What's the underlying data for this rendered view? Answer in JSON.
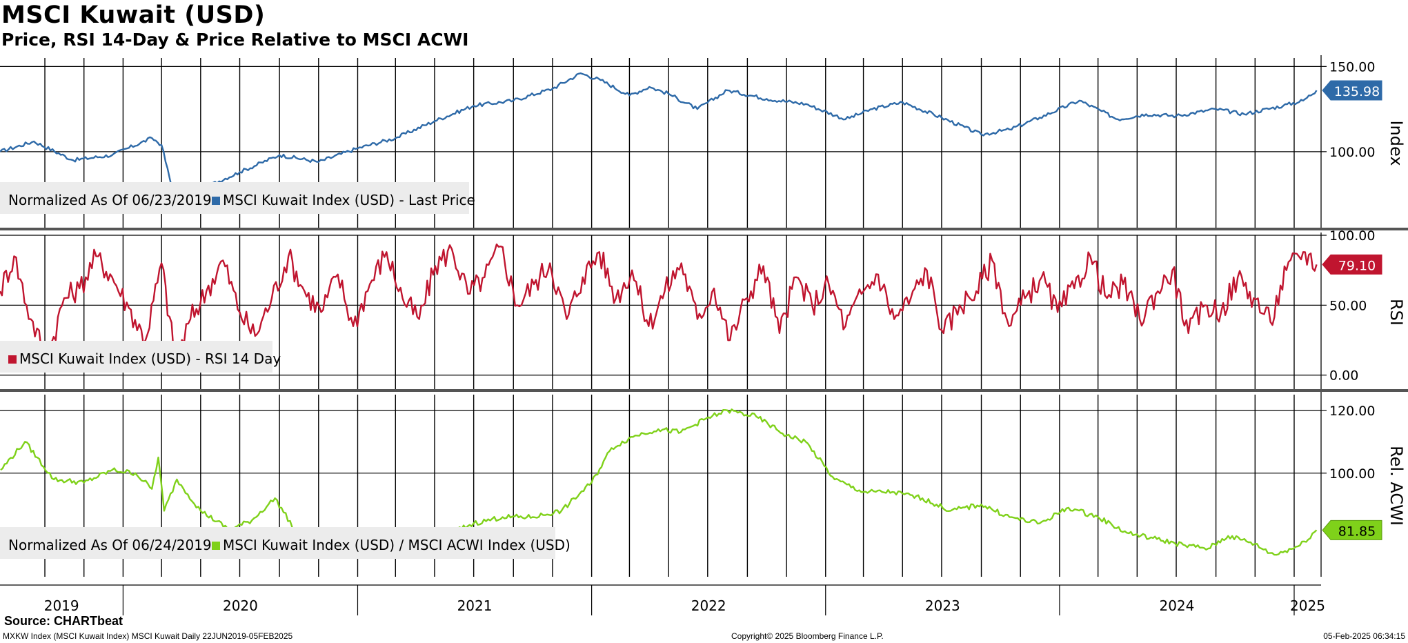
{
  "header": {
    "title": "MSCI Kuwait (USD)",
    "subtitle": "Price, RSI 14-Day & Price Relative to MSCI ACWI"
  },
  "footer": {
    "source": "Source: CHARTbeat",
    "left": "MXKW Index (MSCI Kuwait Index) MSCI Kuwait  Daily 22JUN2019-05FEB2025",
    "center": "Copyright© 2025 Bloomberg Finance L.P.",
    "right": "05-Feb-2025 06:34:15"
  },
  "colors": {
    "price": "#2e6aa8",
    "rsi": "#c0152f",
    "relative": "#7fd11a",
    "grid": "#000000",
    "legend_bg": "#ececec"
  },
  "chart_data": [
    {
      "type": "line",
      "panel": "price",
      "ylabel": "Index",
      "ylim": [
        55,
        155
      ],
      "yticks": [
        "150.00",
        "100.00"
      ],
      "last_value": "135.98",
      "legend_prefix": "Normalized As Of 06/23/2019",
      "series": [
        {
          "name": "MSCI Kuwait Index (USD) - Last Price",
          "x": [
            "2019-06-23",
            "2019-08-15",
            "2019-10-15",
            "2019-12-15",
            "2020-02-15",
            "2020-03-01",
            "2020-03-23",
            "2020-05-01",
            "2020-07-01",
            "2020-09-01",
            "2020-11-01",
            "2021-01-01",
            "2021-03-01",
            "2021-05-01",
            "2021-07-01",
            "2021-09-01",
            "2021-11-01",
            "2021-12-15",
            "2022-01-15",
            "2022-03-01",
            "2022-04-01",
            "2022-05-01",
            "2022-06-15",
            "2022-08-01",
            "2022-10-01",
            "2022-12-01",
            "2023-02-01",
            "2023-03-15",
            "2023-05-01",
            "2023-07-01",
            "2023-09-01",
            "2023-10-15",
            "2023-12-01",
            "2024-02-01",
            "2024-04-01",
            "2024-05-15",
            "2024-07-01",
            "2024-09-01",
            "2024-10-15",
            "2024-12-15",
            "2025-01-15",
            "2025-02-05"
          ],
          "values": [
            100,
            106,
            95,
            98,
            108,
            104,
            70,
            78,
            88,
            98,
            94,
            102,
            108,
            118,
            127,
            130,
            137,
            146,
            142,
            133,
            138,
            134,
            125,
            136,
            131,
            128,
            119,
            125,
            129,
            120,
            110,
            113,
            120,
            130,
            119,
            122,
            121,
            125,
            122,
            127,
            130,
            135.98
          ]
        }
      ]
    },
    {
      "type": "line",
      "panel": "rsi",
      "ylabel": "RSI",
      "ylim": [
        -10,
        100
      ],
      "yticks": [
        "100.00",
        "50.00",
        "0.00"
      ],
      "last_value": "79.10",
      "series": [
        {
          "name": "MSCI Kuwait Index (USD) - RSI 14 Day",
          "x": [
            "2019-06-23",
            "2019-07-15",
            "2019-08-10",
            "2019-09-05",
            "2019-10-01",
            "2019-10-25",
            "2019-11-20",
            "2019-12-15",
            "2020-01-10",
            "2020-02-05",
            "2020-03-01",
            "2020-03-23",
            "2020-04-15",
            "2020-05-10",
            "2020-06-05",
            "2020-07-01",
            "2020-07-25",
            "2020-08-20",
            "2020-09-15",
            "2020-10-10",
            "2020-11-05",
            "2020-12-01",
            "2020-12-25",
            "2021-01-20",
            "2021-02-15",
            "2021-03-12",
            "2021-04-07",
            "2021-05-02",
            "2021-05-28",
            "2021-06-22",
            "2021-07-18",
            "2021-08-12",
            "2021-09-07",
            "2021-10-03",
            "2021-10-28",
            "2021-11-23",
            "2021-12-18",
            "2022-01-13",
            "2022-02-08",
            "2022-03-05",
            "2022-03-31",
            "2022-04-25",
            "2022-05-21",
            "2022-06-15",
            "2022-07-11",
            "2022-08-05",
            "2022-08-31",
            "2022-09-26",
            "2022-10-21",
            "2022-11-16",
            "2022-12-11",
            "2023-01-06",
            "2023-02-01",
            "2023-02-26",
            "2023-03-24",
            "2023-04-18",
            "2023-05-14",
            "2023-06-08",
            "2023-07-04",
            "2023-07-29",
            "2023-08-24",
            "2023-09-18",
            "2023-10-14",
            "2023-11-08",
            "2023-12-04",
            "2023-12-29",
            "2024-01-24",
            "2024-02-18",
            "2024-03-15",
            "2024-04-09",
            "2024-05-05",
            "2024-05-30",
            "2024-06-25",
            "2024-07-20",
            "2024-08-15",
            "2024-09-09",
            "2024-10-05",
            "2024-10-30",
            "2024-11-25",
            "2024-12-20",
            "2025-01-15",
            "2025-02-05"
          ],
          "values": [
            60,
            85,
            40,
            12,
            55,
            62,
            85,
            70,
            48,
            25,
            80,
            10,
            40,
            60,
            82,
            45,
            28,
            55,
            85,
            60,
            45,
            72,
            35,
            65,
            88,
            55,
            40,
            78,
            90,
            58,
            70,
            92,
            50,
            65,
            80,
            40,
            70,
            88,
            55,
            75,
            35,
            60,
            80,
            40,
            62,
            25,
            55,
            78,
            30,
            70,
            50,
            65,
            35,
            58,
            72,
            40,
            55,
            75,
            30,
            50,
            60,
            82,
            35,
            55,
            70,
            45,
            62,
            85,
            55,
            65,
            40,
            58,
            75,
            30,
            50,
            45,
            70,
            55,
            38,
            75,
            88,
            79.1
          ]
        }
      ]
    },
    {
      "type": "line",
      "panel": "relative",
      "ylabel": "Rel. ACWI",
      "ylim": [
        67,
        125
      ],
      "yticks": [
        "120.00",
        "100.00"
      ],
      "last_value": "81.85",
      "legend_prefix": "Normalized As Of 06/24/2019",
      "series": [
        {
          "name": "MSCI Kuwait Index (USD) / MSCI ACWI Index (USD)",
          "x": [
            "2019-06-24",
            "2019-08-01",
            "2019-09-15",
            "2019-11-01",
            "2019-12-15",
            "2020-01-20",
            "2020-02-15",
            "2020-02-25",
            "2020-03-05",
            "2020-03-25",
            "2020-05-01",
            "2020-06-15",
            "2020-07-20",
            "2020-08-25",
            "2020-10-01",
            "2020-11-15",
            "2021-01-01",
            "2021-02-15",
            "2021-04-01",
            "2021-05-15",
            "2021-07-01",
            "2021-08-15",
            "2021-10-01",
            "2021-11-15",
            "2022-01-01",
            "2022-02-01",
            "2022-03-10",
            "2022-04-15",
            "2022-05-20",
            "2022-06-25",
            "2022-08-01",
            "2022-09-15",
            "2022-11-01",
            "2022-12-01",
            "2023-01-15",
            "2023-03-01",
            "2023-04-15",
            "2023-06-01",
            "2023-07-15",
            "2023-09-01",
            "2023-10-15",
            "2023-12-01",
            "2024-01-15",
            "2024-03-01",
            "2024-04-15",
            "2024-06-01",
            "2024-07-15",
            "2024-08-20",
            "2024-09-20",
            "2024-10-25",
            "2024-12-01",
            "2025-01-10",
            "2025-02-05"
          ],
          "values": [
            101,
            110,
            98,
            97,
            101,
            100,
            95,
            105,
            88,
            98,
            88,
            82,
            85,
            92,
            80,
            76,
            75,
            76,
            79,
            80,
            84,
            86,
            86,
            88,
            97,
            108,
            112,
            114,
            113,
            117,
            120,
            118,
            112,
            110,
            98,
            94,
            94,
            92,
            88,
            90,
            86,
            84,
            89,
            86,
            81,
            79,
            77,
            76,
            80,
            78,
            74,
            77,
            81.85
          ]
        }
      ]
    }
  ],
  "x_axis": {
    "labels": [
      "2019",
      "2020",
      "2021",
      "2022",
      "2023",
      "2024",
      "2025"
    ]
  }
}
